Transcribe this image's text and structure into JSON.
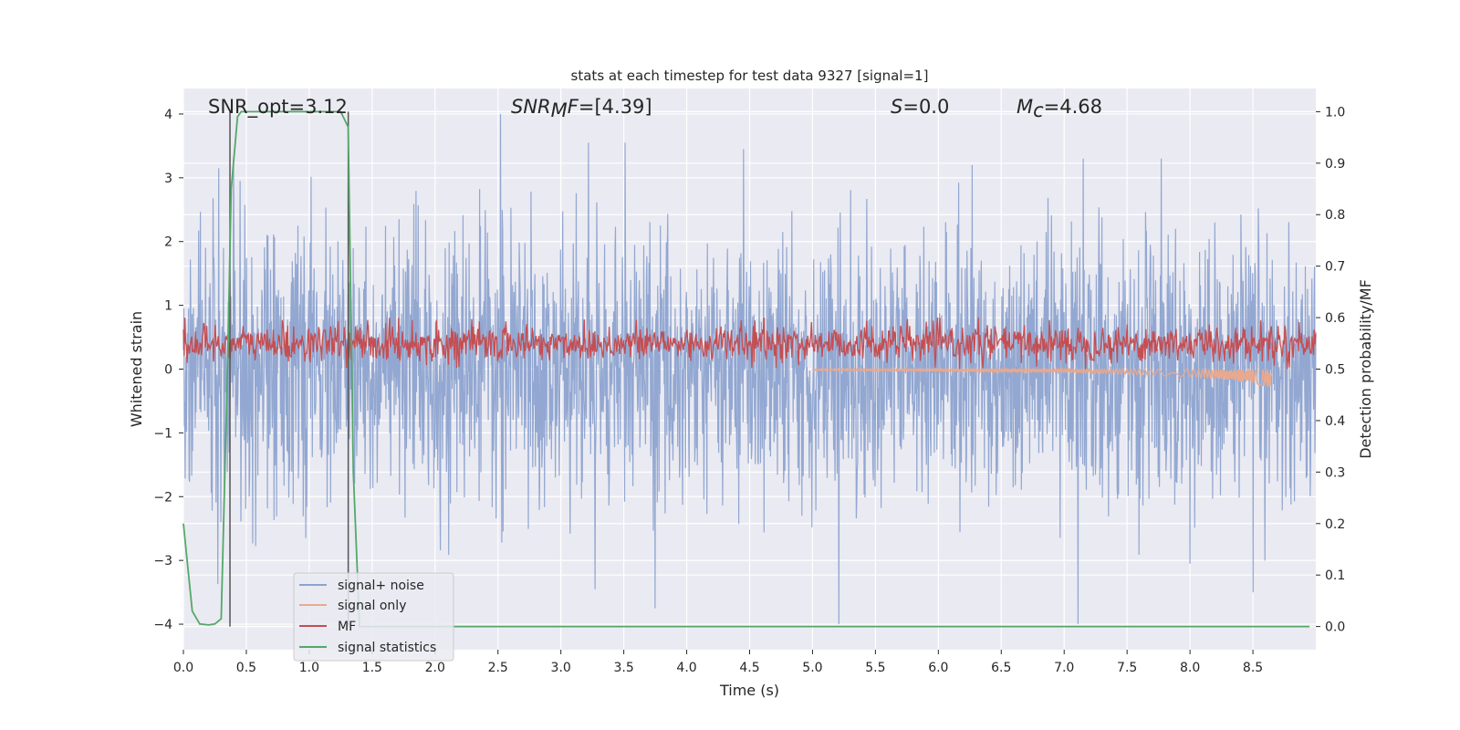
{
  "chart_data": {
    "type": "line",
    "title": "stats at each timestep for test data 9327 [signal=1]",
    "xlabel": "Time (s)",
    "ylabel": "Whitened strain",
    "y2label": "Detection probability/MF",
    "xlim": [
      0,
      9.0
    ],
    "ylim": [
      -4.4,
      4.4
    ],
    "y2lim": [
      -0.045,
      1.045
    ],
    "x_ticks": [
      "0.0",
      "0.5",
      "1.0",
      "1.5",
      "2.0",
      "2.5",
      "3.0",
      "3.5",
      "4.0",
      "4.5",
      "5.0",
      "5.5",
      "6.0",
      "6.5",
      "7.0",
      "7.5",
      "8.0",
      "8.5"
    ],
    "y_ticks": [
      "4",
      "3",
      "2",
      "1",
      "0",
      "−1",
      "−2",
      "−3",
      "−4"
    ],
    "y2_ticks": [
      "1.0",
      "0.9",
      "0.8",
      "0.7",
      "0.6",
      "0.5",
      "0.4",
      "0.3",
      "0.2",
      "0.1",
      "0.0"
    ],
    "annotations": {
      "snr_opt": "SNR_opt=3.12",
      "snr_mf_label": "SNR",
      "snr_mf_sub": "M",
      "snr_mf_label2": "F",
      "snr_mf_value": "=[4.39]",
      "s_label": "S",
      "s_value": "=0.0",
      "mc_label": "M",
      "mc_sub": "c",
      "mc_value": "=4.68"
    },
    "markers_x": [
      0.37,
      1.31
    ],
    "series": [
      {
        "name": "signal+ noise",
        "color": "#8da3cf",
        "axis": "left",
        "description": "whitened strain, Gaussian-like noise, sampled densely from 0 to 9 s",
        "amplitude_std": 1.0,
        "peaks": [
          [
            0.28,
            3.15
          ],
          [
            0.45,
            2.95
          ],
          [
            2.52,
            4.0
          ],
          [
            3.22,
            3.55
          ],
          [
            3.51,
            3.55
          ],
          [
            4.45,
            3.45
          ],
          [
            5.21,
            -4.0
          ],
          [
            6.27,
            3.2
          ],
          [
            7.15,
            3.3
          ],
          [
            7.77,
            3.3
          ],
          [
            3.27,
            -3.45
          ],
          [
            3.75,
            -3.75
          ],
          [
            8.0,
            -3.05
          ],
          [
            8.5,
            -3.5
          ]
        ]
      },
      {
        "name": "signal only",
        "color": "#e8a98f",
        "axis": "left",
        "description": "chirp growing toward merger near 8.65 s",
        "x": [
          5.0,
          6.0,
          7.0,
          7.5,
          8.0,
          8.3,
          8.5,
          8.65
        ],
        "envelope": [
          0.02,
          0.03,
          0.05,
          0.08,
          0.12,
          0.17,
          0.22,
          0.3
        ]
      },
      {
        "name": "MF",
        "color": "#c44e52",
        "axis": "right",
        "description": "matched-filter output on right axis, fluctuating between about 0.5 and 0.6",
        "baseline": 0.5,
        "mean": 0.55,
        "max": 0.6
      },
      {
        "name": "signal statistics",
        "color": "#55a868",
        "axis": "right",
        "x": [
          0.0,
          0.07,
          0.13,
          0.2,
          0.25,
          0.3,
          0.35,
          0.38,
          0.43,
          0.46,
          0.6,
          0.8,
          1.0,
          1.2,
          1.25,
          1.31,
          1.35,
          1.4,
          1.5,
          2.0,
          3.0,
          4.0,
          5.0,
          6.0,
          7.0,
          8.0,
          8.95
        ],
        "y": [
          0.2,
          0.03,
          0.005,
          0.003,
          0.005,
          0.015,
          0.5,
          0.85,
          0.99,
          1.0,
          1.0,
          1.0,
          1.0,
          1.0,
          1.0,
          0.97,
          0.3,
          0.0,
          0.0,
          0.0,
          0.0,
          0.0,
          0.0,
          0.0,
          0.0,
          0.0,
          0.0
        ]
      }
    ],
    "legend": {
      "placement": "lower-left",
      "entries": [
        "signal+ noise",
        "signal only",
        "MF",
        "signal statistics"
      ]
    }
  }
}
